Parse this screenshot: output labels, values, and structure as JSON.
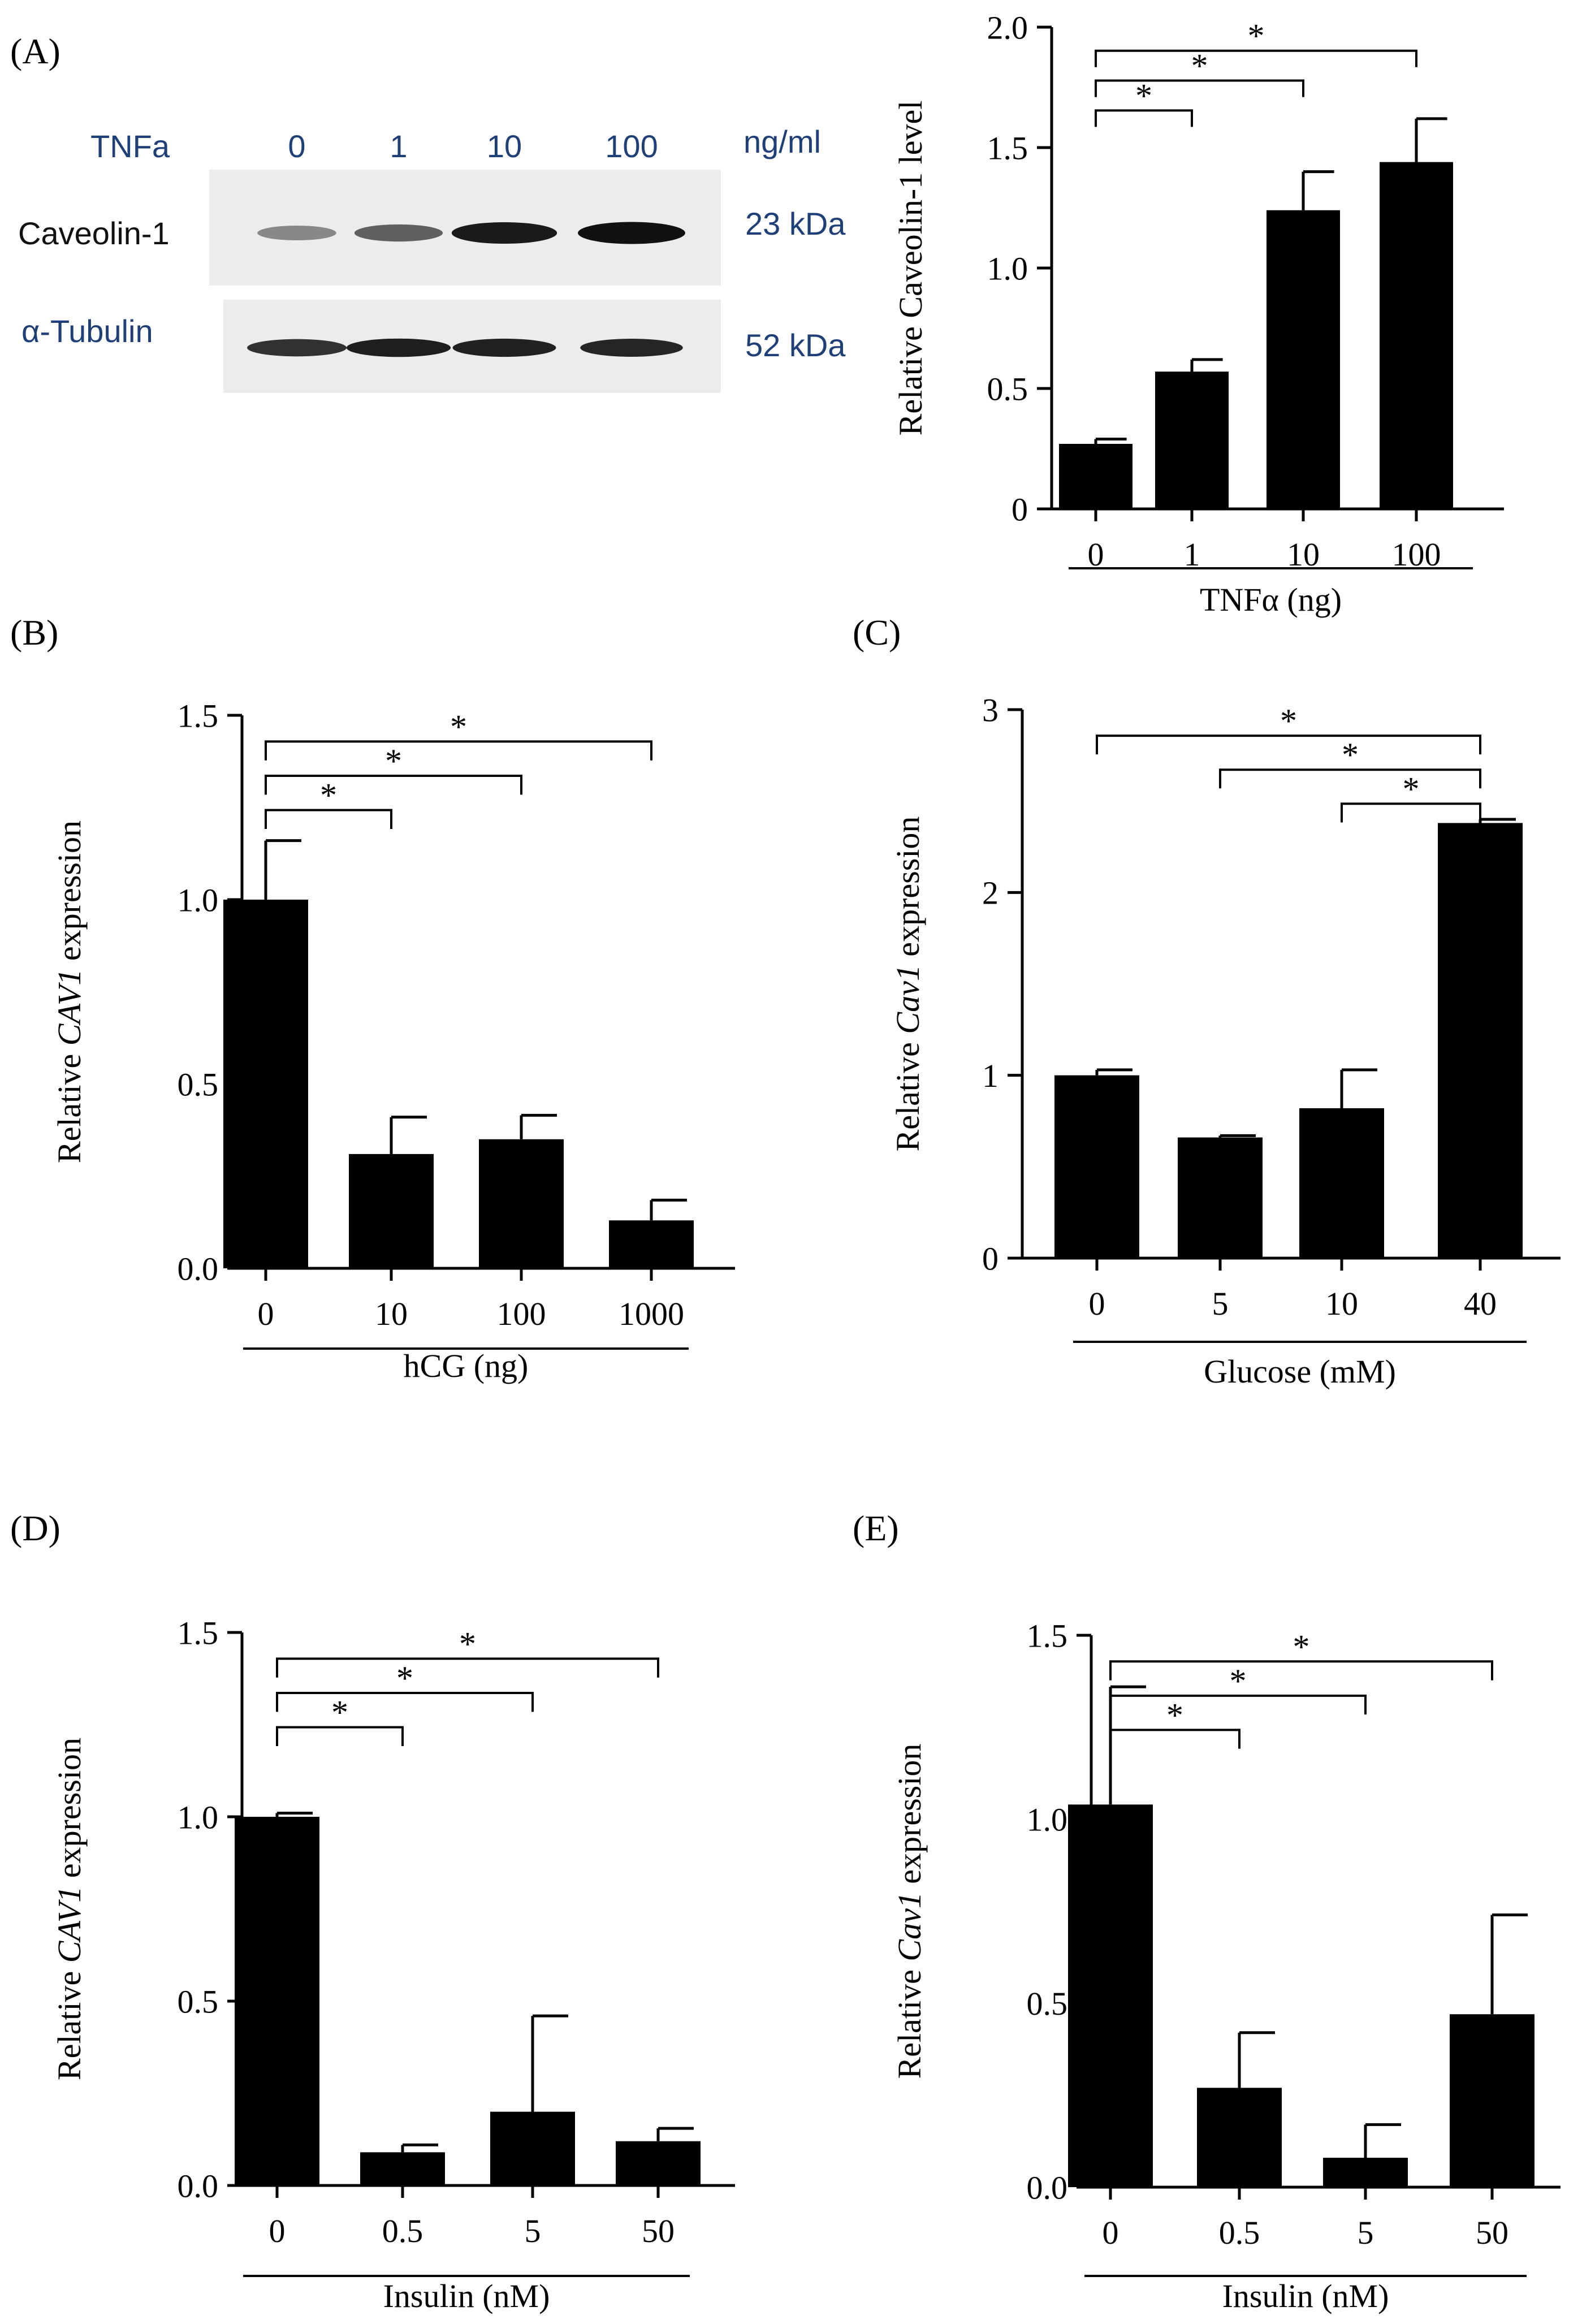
{
  "panel_labels": {
    "a": "(A)",
    "b": "(B)",
    "c": "(C)",
    "d": "(D)",
    "e": "(E)"
  },
  "blot": {
    "treatment_label": "TNFa",
    "lane_labels": [
      "0",
      "1",
      "10",
      "100"
    ],
    "unit": "ng/ml",
    "rows": [
      {
        "protein": "Caveolin-1",
        "size": "23 kDa",
        "band_intensity": [
          0.28,
          0.52,
          0.95,
          1.0
        ]
      },
      {
        "protein": "α-Tubulin",
        "size": "52 kDa",
        "band_intensity": [
          0.8,
          0.92,
          0.9,
          0.88
        ]
      }
    ],
    "colors": {
      "text_blue": "#1f3f78",
      "membrane": "#ececec",
      "band": "#111111"
    }
  },
  "chart_data": [
    {
      "id": "A",
      "type": "bar",
      "title": "",
      "xlabel": "TNFα (ng)",
      "ylabel_parts": [
        "Relative Caveolin-1 level"
      ],
      "italic_part_index": -1,
      "categories": [
        "0",
        "1",
        "10",
        "100"
      ],
      "values": [
        0.27,
        0.57,
        1.24,
        1.44
      ],
      "errors": [
        0.02,
        0.05,
        0.16,
        0.18
      ],
      "ylim": [
        0,
        2.0
      ],
      "yticks": [
        "0",
        "0.5",
        "1.0",
        "1.5",
        "2.0"
      ],
      "ytick_values": [
        0,
        0.5,
        1.0,
        1.5,
        2.0
      ],
      "significance": [
        {
          "from": 0,
          "to": 1,
          "label": "*"
        },
        {
          "from": 0,
          "to": 2,
          "label": "*"
        },
        {
          "from": 0,
          "to": 3,
          "label": "*"
        }
      ],
      "bar_color": "#000000",
      "grid": false
    },
    {
      "id": "B",
      "type": "bar",
      "title": "",
      "xlabel": "hCG (ng)",
      "ylabel_parts": [
        "Relative ",
        "CAV1",
        " expression"
      ],
      "italic_part_index": 1,
      "categories": [
        "0",
        "10",
        "100",
        "1000"
      ],
      "values": [
        1.0,
        0.31,
        0.35,
        0.13
      ],
      "errors": [
        0.16,
        0.1,
        0.065,
        0.055
      ],
      "ylim": [
        0,
        1.5
      ],
      "yticks": [
        "0.0",
        "0.5",
        "1.0",
        "1.5"
      ],
      "ytick_values": [
        0,
        0.5,
        1.0,
        1.5
      ],
      "significance": [
        {
          "from": 0,
          "to": 1,
          "label": "*"
        },
        {
          "from": 0,
          "to": 2,
          "label": "*"
        },
        {
          "from": 0,
          "to": 3,
          "label": "*"
        }
      ],
      "bar_color": "#000000",
      "grid": false
    },
    {
      "id": "C",
      "type": "bar",
      "title": "",
      "xlabel": "Glucose (mM)",
      "ylabel_parts": [
        "Relative ",
        "Cav1",
        " expression"
      ],
      "italic_part_index": 1,
      "categories": [
        "0",
        "5",
        "10",
        "40"
      ],
      "values": [
        1.0,
        0.66,
        0.82,
        2.38
      ],
      "errors": [
        0.03,
        0.01,
        0.21,
        0.02
      ],
      "ylim": [
        0,
        3
      ],
      "yticks": [
        "0",
        "1",
        "2",
        "3"
      ],
      "ytick_values": [
        0,
        1,
        2,
        3
      ],
      "significance": [
        {
          "from": 0,
          "to": 3,
          "label": "*"
        },
        {
          "from": 1,
          "to": 3,
          "label": "*"
        },
        {
          "from": 2,
          "to": 3,
          "label": "*"
        }
      ],
      "bar_color": "#000000",
      "grid": false
    },
    {
      "id": "D",
      "type": "bar",
      "title": "",
      "xlabel": "Insulin (nM)",
      "ylabel_parts": [
        "Relative ",
        "CAV1",
        " expression"
      ],
      "italic_part_index": 1,
      "categories": [
        "0",
        "0.5",
        "5",
        "50"
      ],
      "values": [
        1.0,
        0.09,
        0.2,
        0.12
      ],
      "errors": [
        0.01,
        0.02,
        0.26,
        0.035
      ],
      "ylim": [
        0,
        1.5
      ],
      "yticks": [
        "0.0",
        "0.5",
        "1.0",
        "1.5"
      ],
      "ytick_values": [
        0,
        0.5,
        1.0,
        1.5
      ],
      "significance": [
        {
          "from": 0,
          "to": 1,
          "label": "*"
        },
        {
          "from": 0,
          "to": 2,
          "label": "*"
        },
        {
          "from": 0,
          "to": 3,
          "label": "*"
        }
      ],
      "bar_color": "#000000",
      "grid": false
    },
    {
      "id": "E",
      "type": "bar",
      "title": "",
      "xlabel": "Insulin (nM)",
      "ylabel_parts": [
        "Relative ",
        "Cav1",
        " expression"
      ],
      "italic_part_index": 1,
      "categories": [
        "0",
        "0.5",
        "5",
        "50"
      ],
      "values": [
        1.04,
        0.27,
        0.08,
        0.47
      ],
      "errors": [
        0.32,
        0.15,
        0.09,
        0.27
      ],
      "ylim": [
        0,
        1.5
      ],
      "yticks": [
        "0.0",
        "0.5",
        "1.0",
        "1.5"
      ],
      "ytick_values": [
        0,
        0.5,
        1.0,
        1.5
      ],
      "significance": [
        {
          "from": 0,
          "to": 1,
          "label": "*"
        },
        {
          "from": 0,
          "to": 2,
          "label": "*"
        },
        {
          "from": 0,
          "to": 3,
          "label": "*"
        }
      ],
      "bar_color": "#000000",
      "grid": false
    }
  ]
}
